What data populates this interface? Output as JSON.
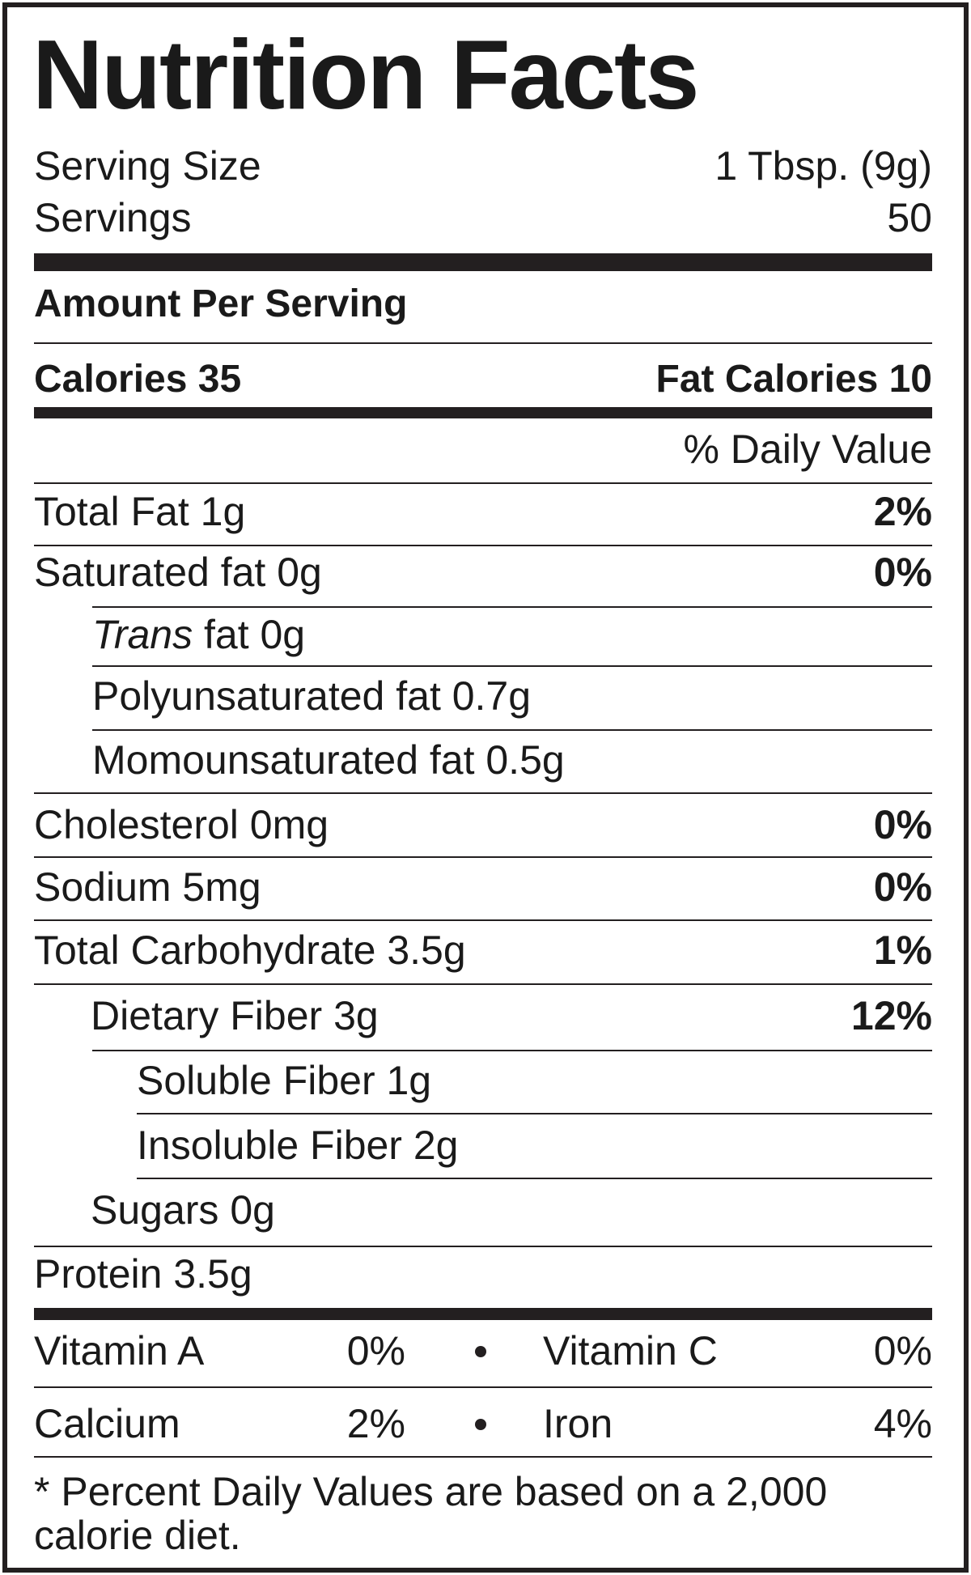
{
  "title": "Nutrition Facts",
  "serving": {
    "size_label": "Serving Size",
    "size_value": "1 Tbsp. (9g)",
    "servings_label": "Servings",
    "servings_value": "50"
  },
  "amount_per_serving": "Amount Per Serving",
  "calories": "Calories 35",
  "fat_calories": "Fat Calories 10",
  "daily_value_header": "% Daily Value",
  "nutrients": [
    {
      "label": "Total Fat 1g",
      "dv": "2%"
    },
    {
      "label": "Saturated fat 0g",
      "dv": "0%"
    },
    {
      "label_italic": "Trans",
      "label": " fat 0g"
    },
    {
      "label": "Polyunsaturated fat 0.7g"
    },
    {
      "label": "Momounsaturated fat 0.5g"
    },
    {
      "label": "Cholesterol 0mg",
      "dv": "0%"
    },
    {
      "label": "Sodium 5mg",
      "dv": "0%"
    },
    {
      "label": "Total Carbohydrate 3.5g",
      "dv": "1%"
    },
    {
      "label": "Dietary Fiber 3g",
      "dv": "12%"
    },
    {
      "label": "Soluble Fiber 1g"
    },
    {
      "label": "Insoluble Fiber 2g"
    },
    {
      "label": "Sugars 0g"
    },
    {
      "label": "Protein 3.5g"
    }
  ],
  "vitamins": [
    {
      "left_label": "Vitamin A",
      "left_value": "0%",
      "right_label": "Vitamin C",
      "right_value": "0%"
    },
    {
      "left_label": "Calcium",
      "left_value": "2%",
      "right_label": "Iron",
      "right_value": "4%"
    }
  ],
  "footnote": "* Percent Daily Values are based on a 2,000 calorie diet."
}
